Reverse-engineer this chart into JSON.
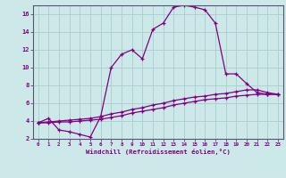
{
  "xlabel": "Windchill (Refroidissement éolien,°C)",
  "bg_color": "#cce8e8",
  "line_color": "#800080",
  "grid_color": "#aacccc",
  "series1_x": [
    0,
    1,
    2,
    3,
    4,
    5,
    6,
    7,
    8,
    9,
    10,
    11,
    12,
    13,
    14,
    15,
    16,
    17,
    18,
    19,
    20,
    21,
    22,
    23
  ],
  "series1_y": [
    3.8,
    4.3,
    3.0,
    2.8,
    2.5,
    2.2,
    4.5,
    10.0,
    11.5,
    12.0,
    11.0,
    14.3,
    15.0,
    16.8,
    17.0,
    16.8,
    16.5,
    15.0,
    9.3,
    9.3,
    8.2,
    7.2,
    7.0,
    7.0
  ],
  "series2_x": [
    0,
    1,
    2,
    3,
    4,
    5,
    6,
    7,
    8,
    9,
    10,
    11,
    12,
    13,
    14,
    15,
    16,
    17,
    18,
    19,
    20,
    21,
    22,
    23
  ],
  "series2_y": [
    3.8,
    3.9,
    4.0,
    4.1,
    4.2,
    4.3,
    4.5,
    4.8,
    5.0,
    5.3,
    5.5,
    5.8,
    6.0,
    6.3,
    6.5,
    6.7,
    6.8,
    7.0,
    7.1,
    7.3,
    7.5,
    7.5,
    7.2,
    7.0
  ],
  "series3_x": [
    0,
    1,
    2,
    3,
    4,
    5,
    6,
    7,
    8,
    9,
    10,
    11,
    12,
    13,
    14,
    15,
    16,
    17,
    18,
    19,
    20,
    21,
    22,
    23
  ],
  "series3_y": [
    3.8,
    3.8,
    3.9,
    3.9,
    4.0,
    4.1,
    4.2,
    4.4,
    4.6,
    4.9,
    5.1,
    5.3,
    5.5,
    5.8,
    6.0,
    6.2,
    6.4,
    6.5,
    6.6,
    6.8,
    6.9,
    7.0,
    7.0,
    7.0
  ],
  "xlim_min": -0.5,
  "xlim_max": 23.5,
  "ylim_min": 2,
  "ylim_max": 17,
  "yticks": [
    2,
    4,
    6,
    8,
    10,
    12,
    14,
    16
  ],
  "xticks": [
    0,
    1,
    2,
    3,
    4,
    5,
    6,
    7,
    8,
    9,
    10,
    11,
    12,
    13,
    14,
    15,
    16,
    17,
    18,
    19,
    20,
    21,
    22,
    23
  ],
  "xtick_labels": [
    "0",
    "1",
    "2",
    "3",
    "4",
    "5",
    "6",
    "7",
    "8",
    "9",
    "10",
    "11",
    "12",
    "13",
    "14",
    "15",
    "16",
    "17",
    "18",
    "19",
    "20",
    "21",
    "22",
    "23"
  ],
  "marker": "+",
  "markersize": 3.5,
  "linewidth": 0.9
}
